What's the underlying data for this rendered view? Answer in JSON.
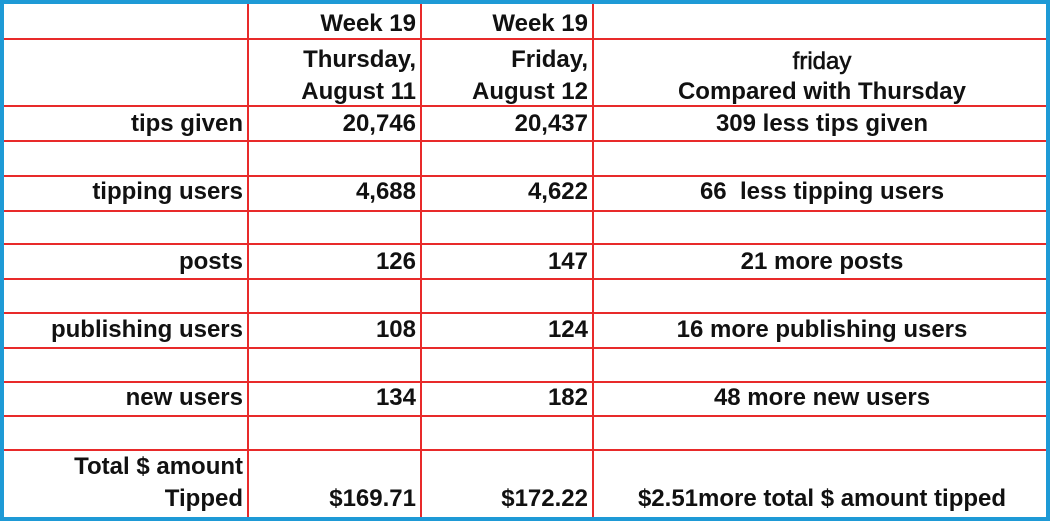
{
  "header": {
    "thursday_week": "Week 19",
    "friday_week": "Week 19",
    "thursday_date": [
      "Thursday,",
      "August 11"
    ],
    "friday_date": [
      "Friday,",
      "August 12"
    ],
    "comparison": [
      "friday",
      "Compared with Thursday"
    ]
  },
  "rows": [
    {
      "label": [
        "tips given"
      ],
      "thursday": "20,746",
      "friday": "20,437",
      "difference": "309 less tips given"
    },
    {
      "label": [
        "tipping users"
      ],
      "thursday": "4,688",
      "friday": "4,622",
      "difference": "66  less tipping users"
    },
    {
      "label": [
        "posts"
      ],
      "thursday": "126",
      "friday": "147",
      "difference": "21 more posts"
    },
    {
      "label": [
        "publishing users"
      ],
      "thursday": "108",
      "friday": "124",
      "difference": "16 more publishing users"
    },
    {
      "label": [
        "new users"
      ],
      "thursday": "134",
      "friday": "182",
      "difference": "48 more new users"
    },
    {
      "label": [
        "Total $ amount",
        "Tipped"
      ],
      "thursday": "$169.71",
      "friday": "$172.22",
      "difference": "$2.51more total $ amount tipped"
    }
  ]
}
